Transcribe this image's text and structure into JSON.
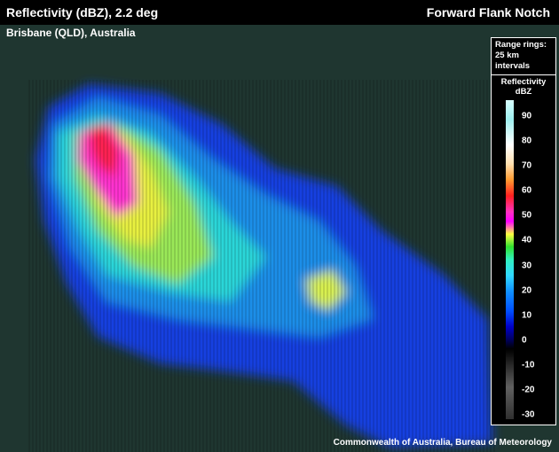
{
  "header": {
    "title": "Reflectivity (dBZ), 2.2 deg",
    "feature": "Forward Flank Notch"
  },
  "location": "Brisbane (QLD), Australia",
  "legend": {
    "rings": "Range rings:",
    "rings_detail": "25 km",
    "rings_unit": "intervals",
    "title": "Reflectivity",
    "unit": "dBZ",
    "ticks": [
      90,
      80,
      70,
      60,
      50,
      40,
      30,
      20,
      10,
      0,
      -10,
      -20,
      -30
    ]
  },
  "credit": "Commonwealth of Australia, Bureau of Meteorology"
}
